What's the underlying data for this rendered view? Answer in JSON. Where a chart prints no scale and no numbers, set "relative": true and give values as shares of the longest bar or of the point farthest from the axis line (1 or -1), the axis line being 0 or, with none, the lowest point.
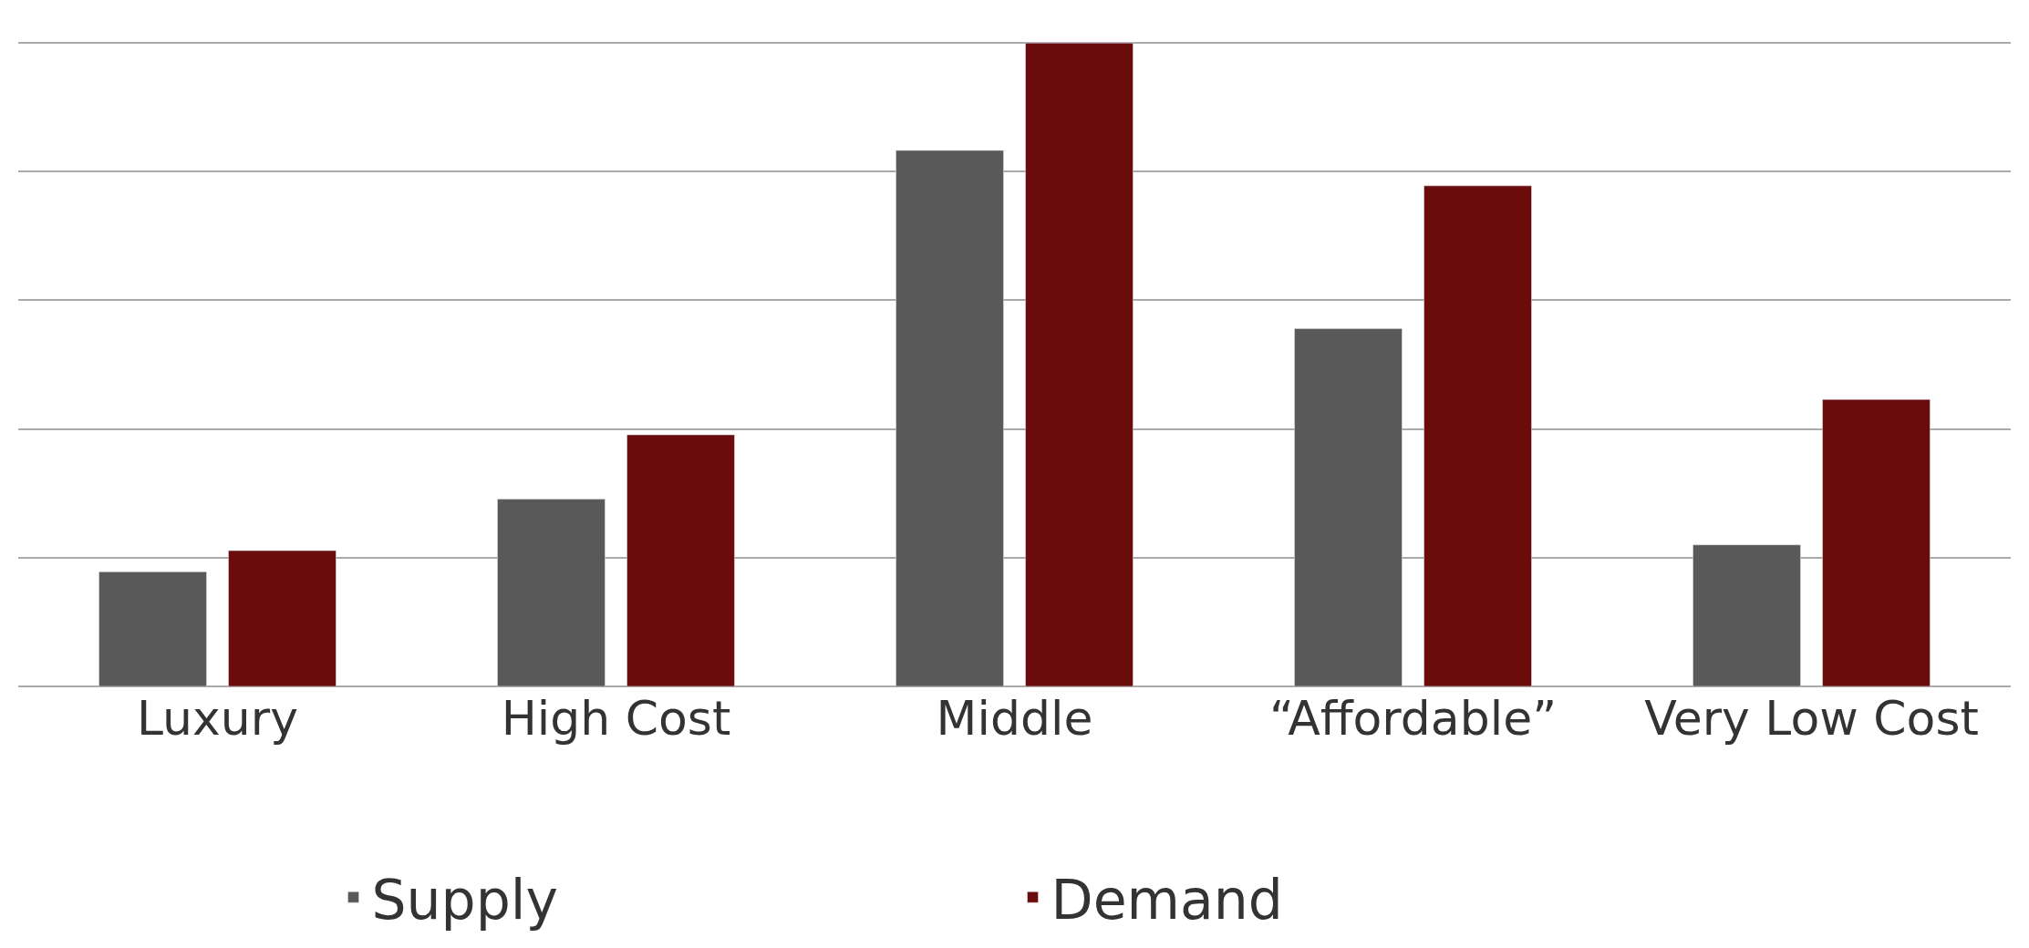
{
  "chart_data": {
    "type": "bar",
    "relative": true,
    "categories": [
      "Luxury",
      "High Cost",
      "Middle",
      "“Affordable”",
      "Very Low Cost"
    ],
    "series": [
      {
        "name": "Supply",
        "color": "#595959",
        "values": [
          0.178,
          0.291,
          0.833,
          0.556,
          0.22
        ]
      },
      {
        "name": "Demand",
        "color": "#6b0c0c",
        "values": [
          0.211,
          0.391,
          1.0,
          0.778,
          0.446
        ]
      }
    ],
    "grid": "y",
    "legend": "bottom"
  }
}
